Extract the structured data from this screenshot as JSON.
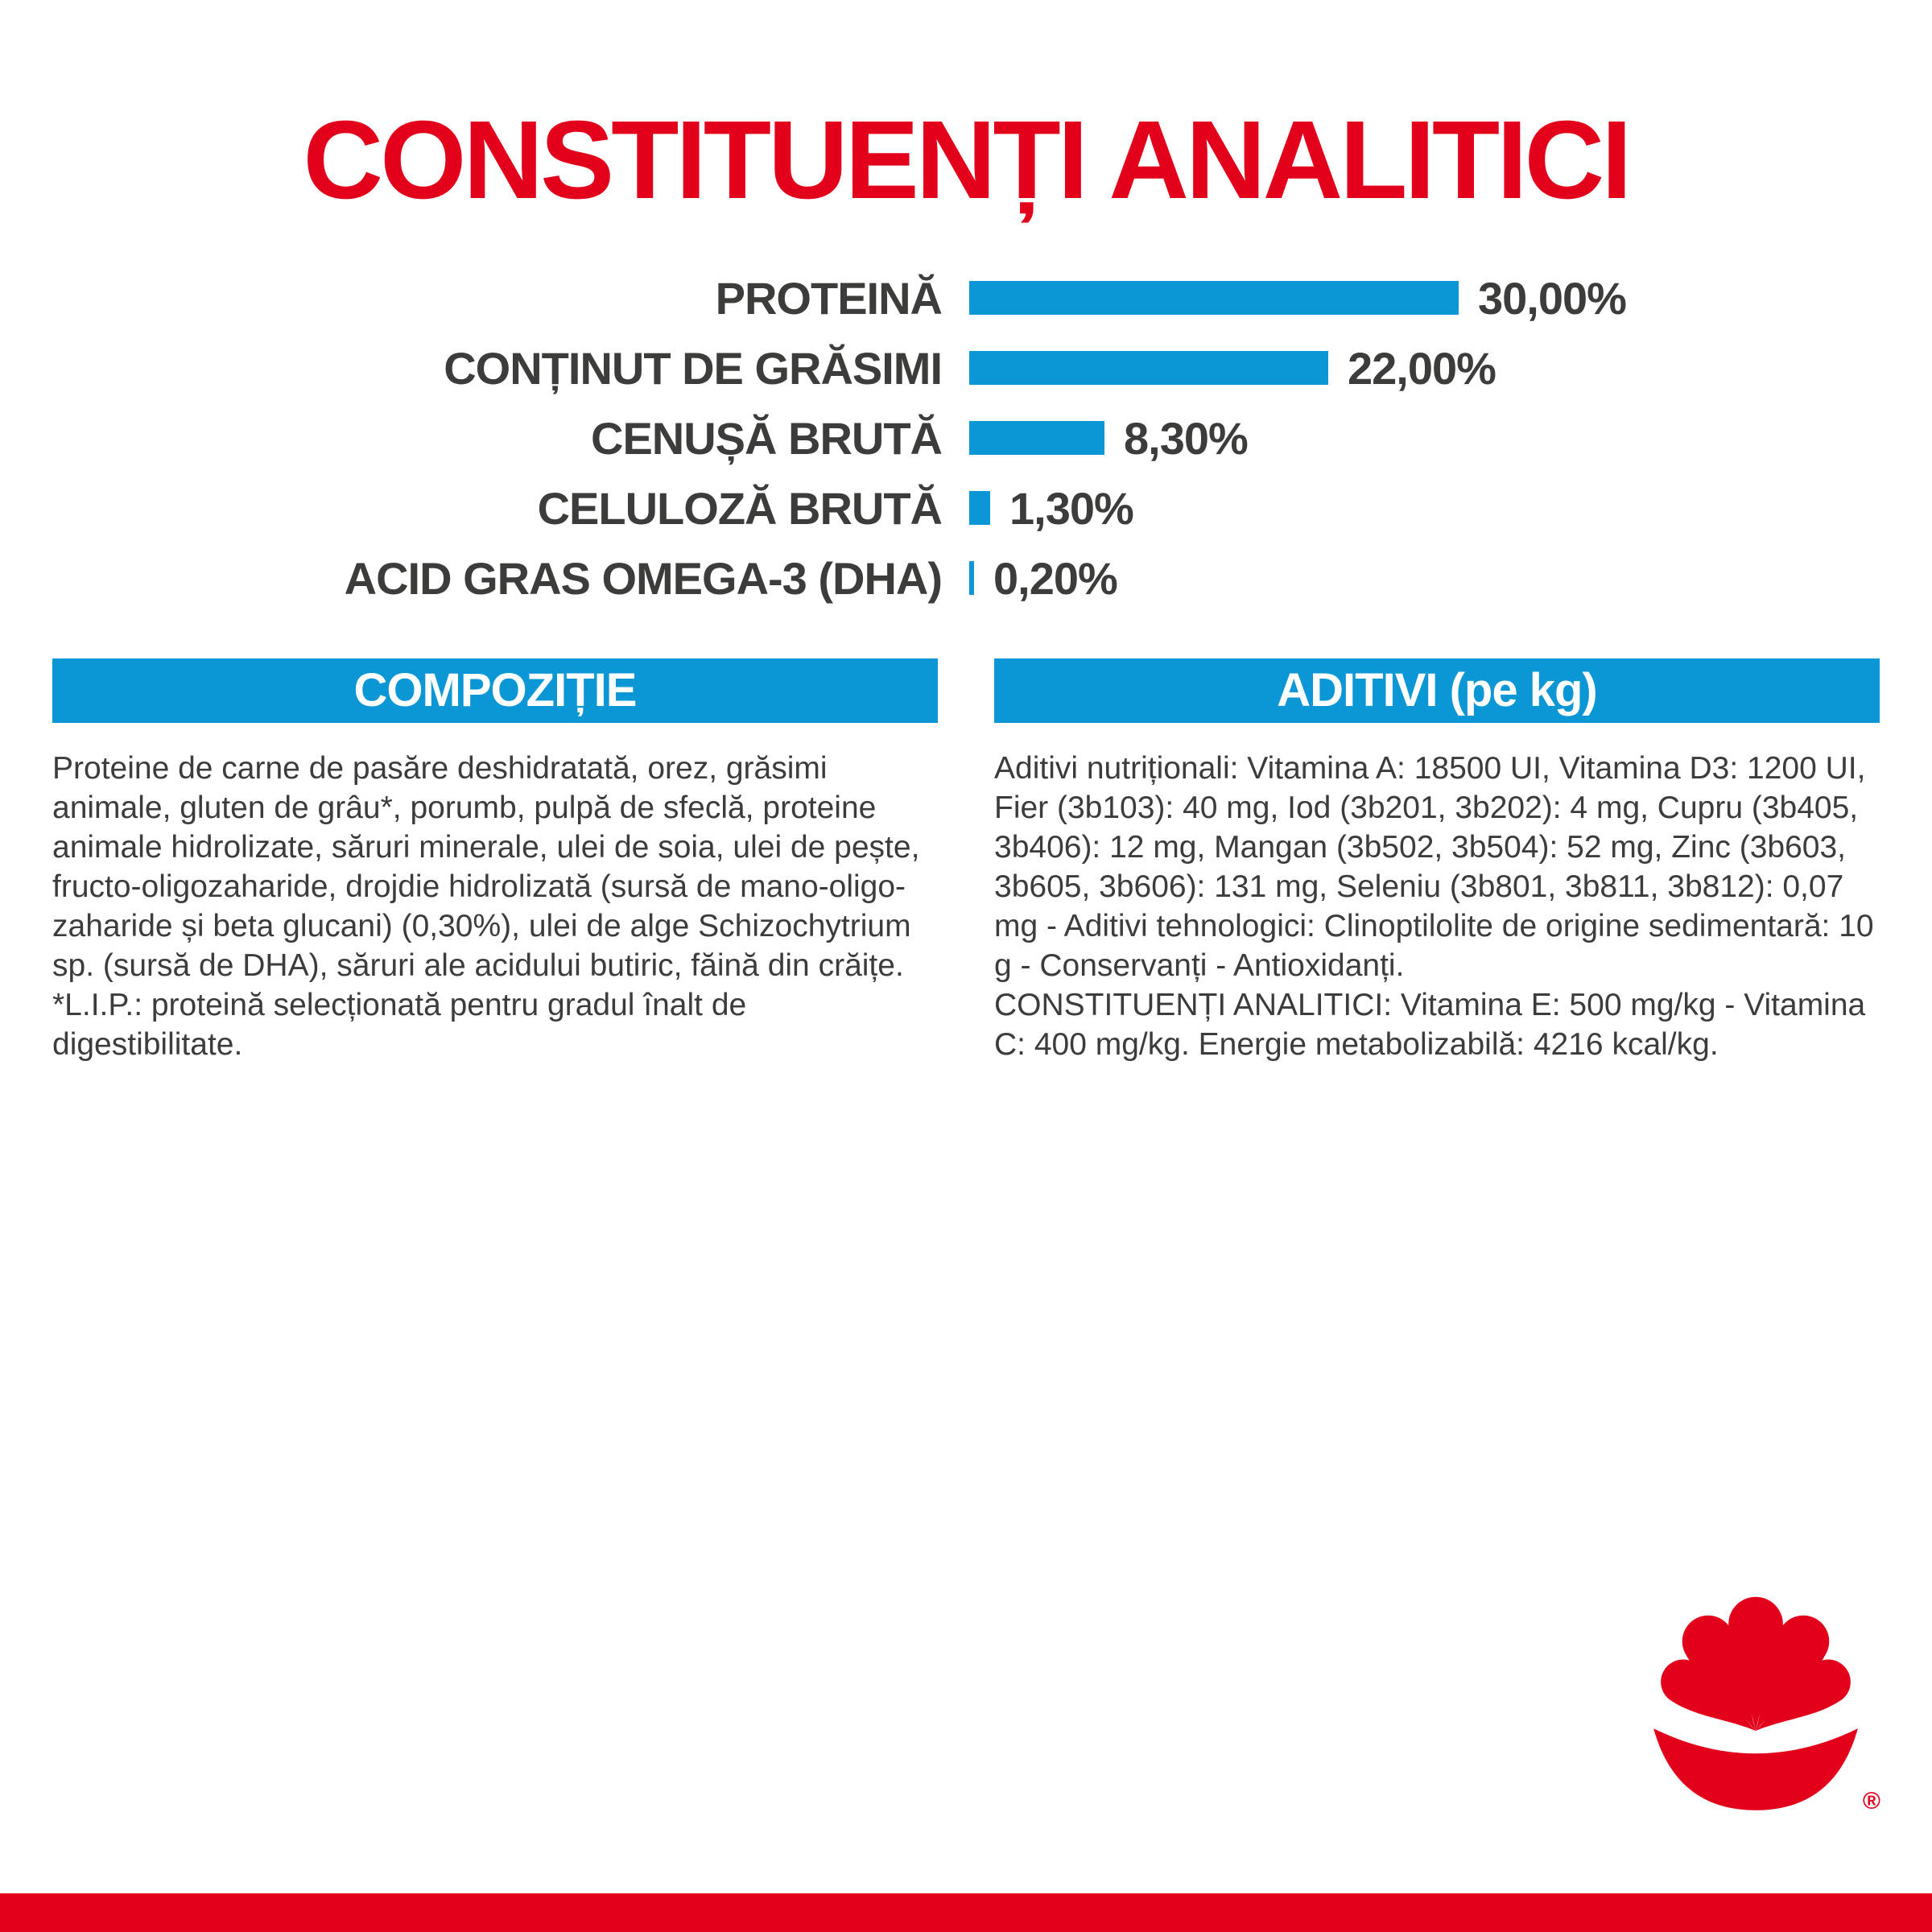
{
  "page": {
    "title": "CONSTITUENȚI ANALITICI",
    "accent_red": "#E2001A",
    "accent_blue": "#0B96D6",
    "text_gray": "#3C3C3B"
  },
  "chart_data": {
    "type": "bar",
    "orientation": "horizontal",
    "title": "CONSTITUENȚI ANALITICI",
    "categories": [
      "PROTEINĂ",
      "CONȚINUT DE GRĂSIMI",
      "CENUȘĂ BRUTĂ",
      "CELULOZĂ BRUTĂ",
      "ACID GRAS OMEGA-3 (DHA)"
    ],
    "values": [
      30.0,
      22.0,
      8.3,
      1.3,
      0.2
    ],
    "value_labels": [
      "30,00%",
      "22,00%",
      "8,30%",
      "1,30%",
      "0,20%"
    ],
    "unit": "%",
    "xlim": [
      0,
      30
    ],
    "bar_color": "#0B96D6",
    "grid": false,
    "legend": false
  },
  "sections": {
    "composition": {
      "header": "COMPOZIȚIE",
      "body": "Proteine de carne de pasăre deshidratată, orez, grăsimi animale, gluten de grâu*, porumb, pulpă de sfeclă, proteine animale hidrolizate, săruri minerale, ulei de soia, ulei de pește, fructo-oligozaharide, drojdie hidrolizată (sursă de mano-oligo-zaharide și beta glucani) (0,30%), ulei de alge Schizochytrium sp. (sursă de DHA), săruri ale acidului butiric, făină din crăițe.",
      "footnote": "*L.I.P.: proteină selecționată pentru gradul înalt de digestibilitate."
    },
    "additives": {
      "header": "ADITIVI (pe kg)",
      "body": "Aditivi nutriționali: Vitamina A: 18500 UI, Vitamina D3: 1200 UI, Fier (3b103): 40 mg, Iod (3b201, 3b202): 4 mg, Cupru (3b405, 3b406): 12 mg, Mangan (3b502, 3b504): 52 mg, Zinc (3b603, 3b605, 3b606): 131 mg, Seleniu (3b801, 3b811, 3b812): 0,07 mg - Aditivi tehnologici: Clinoptilolite de origine sedimentară: 10 g - Conservanți - Antioxidanți.",
      "body2": "CONSTITUENȚI ANALITICI: Vitamina E: 500 mg/kg - Vitamina C: 400 mg/kg. Energie metabolizabilă: 4216 kcal/kg."
    }
  },
  "logo": {
    "name": "royal-canin-crown",
    "registered_mark": "®"
  }
}
